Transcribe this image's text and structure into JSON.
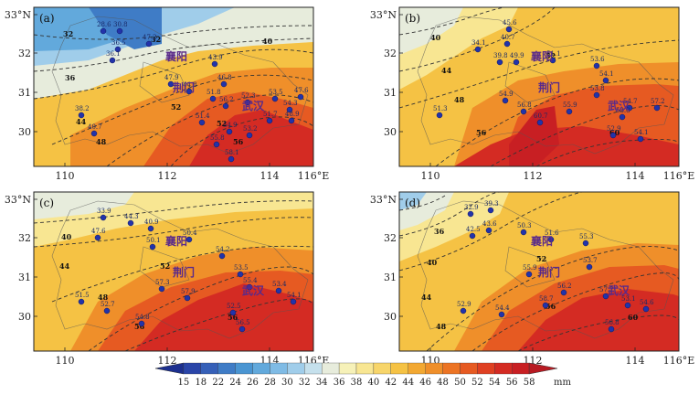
{
  "x_ticks": [
    "110",
    "112",
    "114",
    "116°E"
  ],
  "y_ticks": [
    "33°N",
    "32",
    "31",
    "30"
  ],
  "panels": [
    {
      "label": "(a)",
      "city_labels": [
        "襄阳",
        "荆门",
        "武汉"
      ],
      "contour_labels": [
        "32",
        "32",
        "36",
        "40",
        "44",
        "48",
        "52",
        "52",
        "56"
      ],
      "station_values": [
        "28.6",
        "30.8",
        "36.5",
        "36.1",
        "38.2",
        "47.2",
        "43.9",
        "46.8",
        "40.7",
        "44.8",
        "47.9",
        "51.8",
        "56.2",
        "52.3",
        "53.5",
        "54.3",
        "47.6",
        "51.4",
        "54.9",
        "53.2",
        "55.8",
        "58.1",
        "48.9",
        "51.7"
      ]
    },
    {
      "label": "(b)",
      "city_labels": [
        "襄阳",
        "荆门",
        "武汉"
      ],
      "contour_labels": [
        "40",
        "44",
        "48",
        "52",
        "56",
        "60"
      ],
      "station_values": [
        "34.1",
        "45.6",
        "40.7",
        "39.8",
        "49.9",
        "51.1",
        "53.6",
        "54.1",
        "51.3",
        "54.9",
        "56.8",
        "60.7",
        "55.9",
        "53.8",
        "54.7",
        "57.2",
        "52.9",
        "54.1",
        "53.8"
      ]
    },
    {
      "label": "(c)",
      "city_labels": [
        "襄阳",
        "荆门",
        "武汉"
      ],
      "contour_labels": [
        "40",
        "44",
        "48",
        "52",
        "56",
        "56"
      ],
      "station_values": [
        "33.9",
        "44.3",
        "40.9",
        "47.6",
        "50.1",
        "50.4",
        "54.2",
        "53.5",
        "55.4",
        "51.5",
        "52.7",
        "57.3",
        "54.8",
        "57.9",
        "53.4",
        "52.5",
        "56.5",
        "54.1"
      ]
    },
    {
      "label": "(d)",
      "city_labels": [
        "襄阳",
        "荆门",
        "武汉"
      ],
      "contour_labels": [
        "36",
        "40",
        "44",
        "48",
        "52",
        "56",
        "60"
      ],
      "station_values": [
        "32.9",
        "39.3",
        "43.6",
        "42.5",
        "50.3",
        "51.6",
        "55.3",
        "53.7",
        "52.9",
        "55.9",
        "58.7",
        "54.4",
        "56.2",
        "57.2",
        "53.1",
        "54.6",
        "56.8"
      ]
    }
  ],
  "colorbar": {
    "labels": [
      "15",
      "18",
      "22",
      "24",
      "26",
      "28",
      "30",
      "32",
      "34",
      "36",
      "38",
      "40",
      "42",
      "44",
      "46",
      "48",
      "50",
      "52",
      "54",
      "56",
      "58"
    ],
    "unit": "mm",
    "colors": [
      "#1c2f8f",
      "#2a45a8",
      "#3660b8",
      "#3f7cc6",
      "#4a95d2",
      "#62a9dc",
      "#7fbbe5",
      "#a0cdea",
      "#c5e0ec",
      "#e7ecdc",
      "#f6f1b8",
      "#f8e692",
      "#f7d56a",
      "#f5c244",
      "#f2a832",
      "#ef8f2a",
      "#ec7424",
      "#e65a22",
      "#df4022",
      "#d42b23",
      "#c81f23",
      "#b81a22"
    ]
  }
}
